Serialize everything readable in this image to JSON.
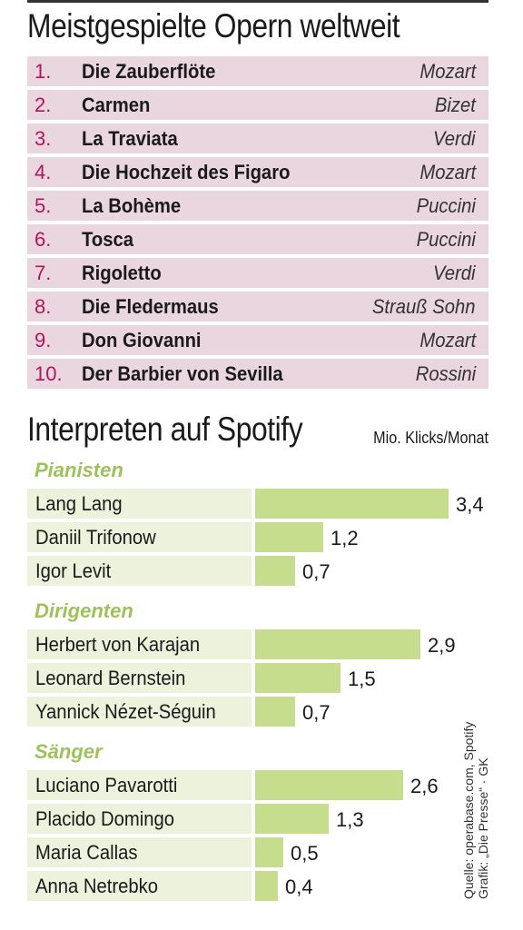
{
  "title": "Meistgespielte Opern weltweit",
  "operas": [
    {
      "rank": "1.",
      "title": "Die Zauberflöte",
      "composer": "Mozart"
    },
    {
      "rank": "2.",
      "title": "Carmen",
      "composer": "Bizet"
    },
    {
      "rank": "3.",
      "title": "La Traviata",
      "composer": "Verdi"
    },
    {
      "rank": "4.",
      "title": "Die Hochzeit des Figaro",
      "composer": "Mozart"
    },
    {
      "rank": "5.",
      "title": "La Bohème",
      "composer": "Puccini"
    },
    {
      "rank": "6.",
      "title": "Tosca",
      "composer": "Puccini"
    },
    {
      "rank": "7.",
      "title": "Rigoletto",
      "composer": "Verdi"
    },
    {
      "rank": "8.",
      "title": "Die Fledermaus",
      "composer": "Strauß Sohn"
    },
    {
      "rank": "9.",
      "title": "Don Giovanni",
      "composer": "Mozart"
    },
    {
      "rank": "10.",
      "title": "Der Barbier von Sevilla",
      "composer": "Rossini"
    }
  ],
  "spotify_title": "Interpreten auf Spotify",
  "unit_label": "Mio. Klicks/Monat",
  "source_line1": "Quelle: operabase.com, Spotify",
  "source_line2": "Grafik: „Die Presse“ · GK",
  "colors": {
    "rank": "#b0155e",
    "opera_row": "#ead6df",
    "group_title": "#9cc25a",
    "name_bg": "#ecf2dc",
    "bar": "#c5dd8d"
  },
  "chart_data": {
    "type": "bar",
    "title": "Interpreten auf Spotify",
    "unit": "Mio. Klicks/Monat",
    "groups": [
      {
        "name": "Pianisten",
        "items": [
          {
            "label": "Lang Lang",
            "value": 3.4,
            "display": "3,4"
          },
          {
            "label": "Daniil Trifonow",
            "value": 1.2,
            "display": "1,2"
          },
          {
            "label": "Igor Levit",
            "value": 0.7,
            "display": "0,7"
          }
        ]
      },
      {
        "name": "Dirigenten",
        "items": [
          {
            "label": "Herbert von Karajan",
            "value": 2.9,
            "display": "2,9"
          },
          {
            "label": "Leonard Bernstein",
            "value": 1.5,
            "display": "1,5"
          },
          {
            "label": "Yannick Nézet-Séguin",
            "value": 0.7,
            "display": "0,7"
          }
        ]
      },
      {
        "name": "Sänger",
        "items": [
          {
            "label": "Luciano Pavarotti",
            "value": 2.6,
            "display": "2,6"
          },
          {
            "label": "Placido Domingo",
            "value": 1.3,
            "display": "1,3"
          },
          {
            "label": "Maria Callas",
            "value": 0.5,
            "display": "0,5"
          },
          {
            "label": "Anna Netrebko",
            "value": 0.4,
            "display": "0,4"
          }
        ]
      }
    ]
  }
}
